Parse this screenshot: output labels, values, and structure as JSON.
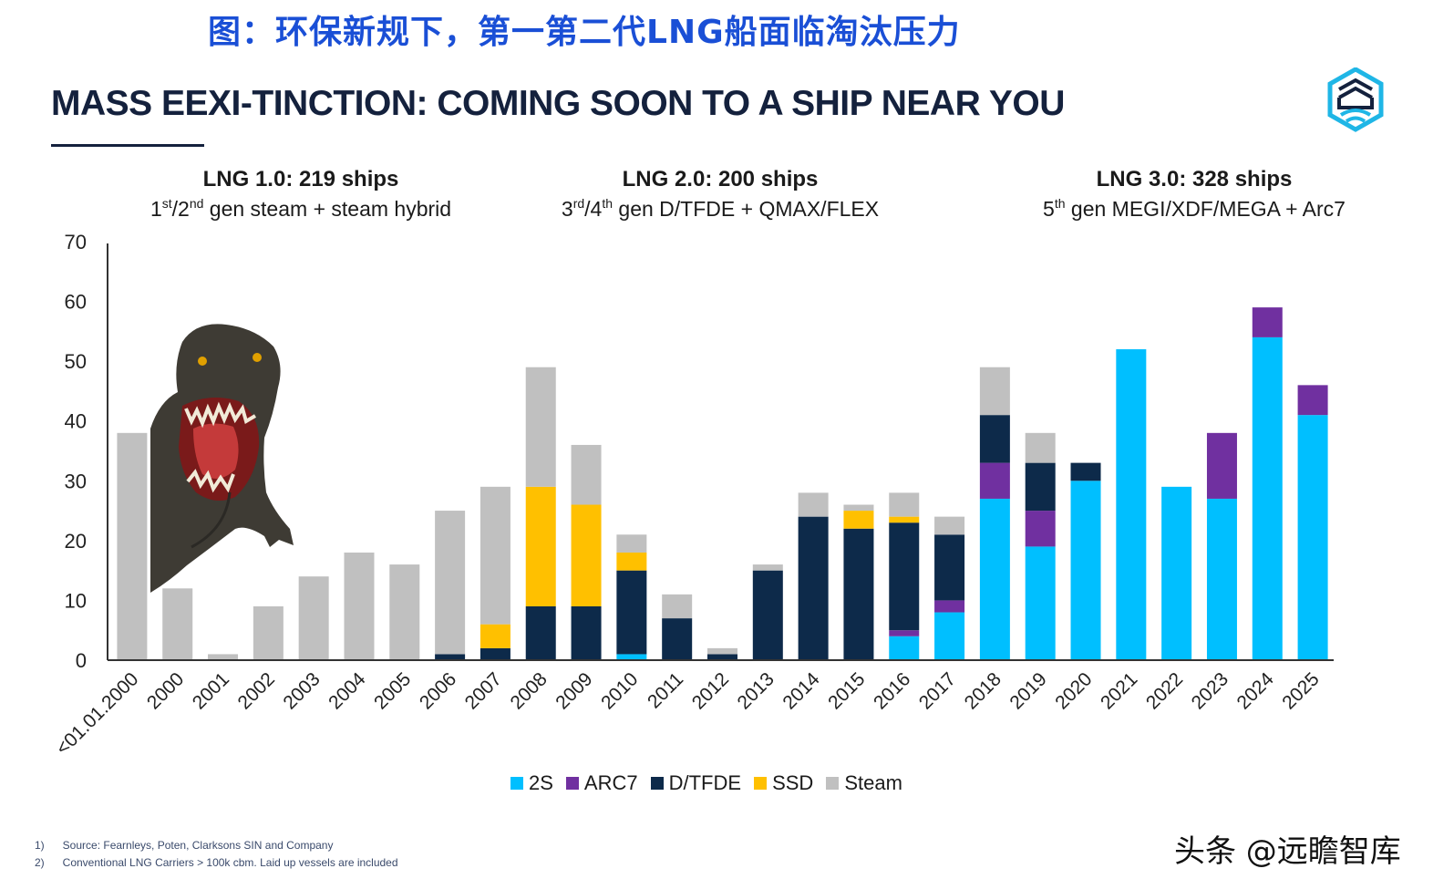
{
  "header": {
    "cn_title": "图：环保新规下，第一第二代LNG船面临淘汰压力",
    "main_title": "MASS EEXI-TINCTION: COMING SOON TO A SHIP NEAR YOU"
  },
  "groups": [
    {
      "title": "LNG 1.0: 219 ships",
      "sub_pre": "1",
      "sup1": "st",
      "sub_mid": "/2",
      "sup2": "nd",
      "sub_post": " gen steam + steam hybrid"
    },
    {
      "title": "LNG 2.0: 200 ships",
      "sub_pre": "3",
      "sup1": "rd",
      "sub_mid": "/4",
      "sup2": "th",
      "sub_post": " gen D/TFDE + QMAX/FLEX"
    },
    {
      "title": "LNG 3.0: 328 ships",
      "sub_pre": "5",
      "sup1": "th",
      "sub_mid": "",
      "sup2": "",
      "sub_post": " gen MEGI/XDF/MEGA + Arc7"
    }
  ],
  "footnotes": [
    {
      "num": "1)",
      "text": "Source: Fearnleys, Poten, Clarksons SIN and Company"
    },
    {
      "num": "2)",
      "text": "Conventional LNG Carriers  > 100k cbm. Laid up vessels are included"
    }
  ],
  "watermark": "头条 @远瞻智库",
  "chart_data": {
    "type": "bar",
    "stacked": true,
    "categories": [
      "<01.01.2000",
      "2000",
      "2001",
      "2002",
      "2003",
      "2004",
      "2005",
      "2006",
      "2007",
      "2008",
      "2009",
      "2010",
      "2011",
      "2012",
      "2013",
      "2014",
      "2015",
      "2016",
      "2017",
      "2018",
      "2019",
      "2020",
      "2021",
      "2022",
      "2023",
      "2024",
      "2025"
    ],
    "series": [
      {
        "name": "2S",
        "color": "#00bfff",
        "values": [
          0,
          0,
          0,
          0,
          0,
          0,
          0,
          0,
          0,
          0,
          0,
          1,
          0,
          0,
          0,
          0,
          0,
          4,
          8,
          27,
          19,
          30,
          52,
          29,
          27,
          54,
          41
        ]
      },
      {
        "name": "ARC7",
        "color": "#7030a0",
        "values": [
          0,
          0,
          0,
          0,
          0,
          0,
          0,
          0,
          0,
          0,
          0,
          0,
          0,
          0,
          0,
          0,
          0,
          1,
          2,
          6,
          6,
          0,
          0,
          0,
          11,
          5,
          5
        ]
      },
      {
        "name": "D/TFDE",
        "color": "#0d2a4a",
        "values": [
          0,
          0,
          0,
          0,
          0,
          0,
          0,
          1,
          2,
          9,
          9,
          14,
          7,
          1,
          15,
          24,
          22,
          18,
          11,
          8,
          8,
          3,
          0,
          0,
          0,
          0,
          0
        ]
      },
      {
        "name": "SSD",
        "color": "#ffc000",
        "values": [
          0,
          0,
          0,
          0,
          0,
          0,
          0,
          0,
          4,
          20,
          17,
          3,
          0,
          0,
          0,
          0,
          3,
          1,
          0,
          0,
          0,
          0,
          0,
          0,
          0,
          0,
          0
        ]
      },
      {
        "name": "Steam",
        "color": "#c0c0c0",
        "values": [
          38,
          12,
          1,
          9,
          14,
          18,
          16,
          24,
          23,
          20,
          10,
          3,
          4,
          1,
          1,
          4,
          1,
          4,
          3,
          8,
          5,
          0,
          0,
          0,
          0,
          0,
          0
        ]
      }
    ],
    "y_ticks": [
      0,
      10,
      20,
      30,
      40,
      50,
      60,
      70
    ],
    "ylim": [
      0,
      70
    ],
    "legend": "bottom-center"
  },
  "colors": {
    "title_blue": "#1a4fd6",
    "navy": "#14213d",
    "logo_cyan": "#1fb6e6"
  }
}
